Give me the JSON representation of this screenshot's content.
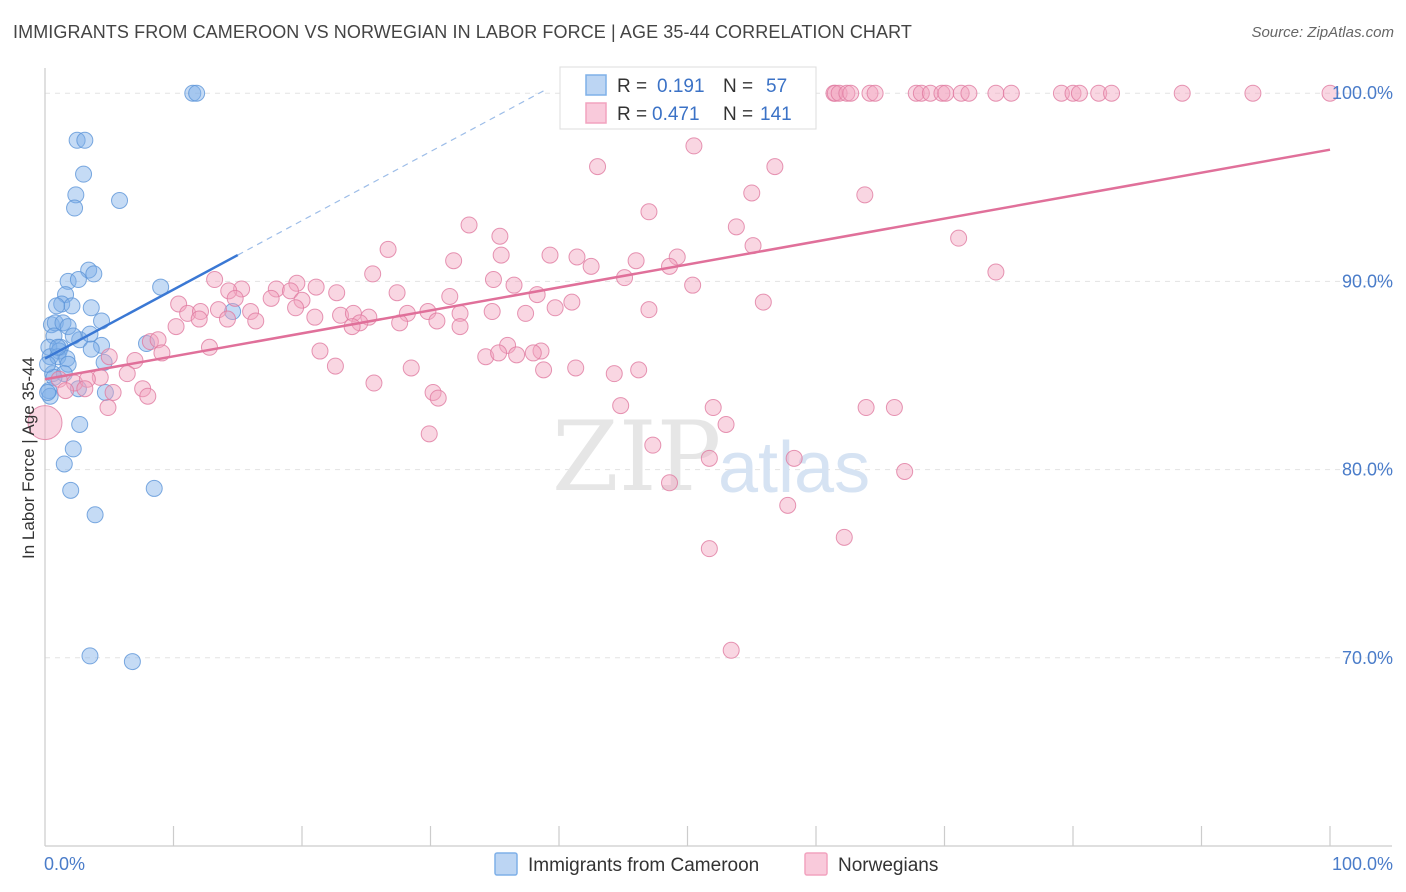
{
  "title": "IMMIGRANTS FROM CAMEROON VS NORWEGIAN IN LABOR FORCE | AGE 35-44 CORRELATION CHART",
  "source": "Source: ZipAtlas.com",
  "watermark": {
    "zip": "ZIP",
    "atlas": "atlas"
  },
  "legend": {
    "r_label": "R =",
    "n_label": "N =",
    "rows": [
      {
        "name": "Immigrants from Cameroon",
        "r": "0.191",
        "n": "57",
        "color": "#7fb0e8"
      },
      {
        "name": "Norwegians",
        "r": "0.471",
        "n": "141",
        "color": "#f2a3bf"
      }
    ]
  },
  "chart_data": {
    "type": "scatter",
    "title": "IMMIGRANTS FROM CAMEROON VS NORWEGIAN IN LABOR FORCE | AGE 35-44 CORRELATION CHART",
    "xlabel": "",
    "ylabel": "In Labor Force | Age 35-44",
    "xlim": [
      0,
      100
    ],
    "ylim": [
      60,
      101.5
    ],
    "x_tick_labels": [
      "0.0%",
      "100.0%"
    ],
    "y_ticks": [
      70,
      80,
      90,
      100
    ],
    "y_tick_labels": [
      "70.0%",
      "80.0%",
      "90.0%",
      "100.0%"
    ],
    "grid": "horizontal dashed",
    "legend_position": "top-center",
    "series": [
      {
        "name": "Immigrants from Cameroon",
        "color": "#7fb0e8",
        "stroke": "#5d95d8",
        "trend": {
          "x": [
            0,
            15
          ],
          "y": [
            85.9,
            91.4
          ],
          "extrapolated_to": [
            39,
            100
          ]
        },
        "points": [
          [
            11.5,
            100
          ],
          [
            11.8,
            100
          ],
          [
            2.5,
            97.5
          ],
          [
            3.1,
            97.5
          ],
          [
            3.0,
            95.7
          ],
          [
            2.4,
            94.6
          ],
          [
            5.8,
            94.3
          ],
          [
            2.3,
            93.9
          ],
          [
            3.4,
            90.6
          ],
          [
            3.8,
            90.4
          ],
          [
            1.8,
            90
          ],
          [
            2.6,
            90.1
          ],
          [
            9.0,
            89.7
          ],
          [
            1.6,
            89.3
          ],
          [
            1.3,
            88.8
          ],
          [
            2.1,
            88.7
          ],
          [
            3.6,
            88.6
          ],
          [
            14.6,
            88.4
          ],
          [
            0.5,
            87.7
          ],
          [
            0.8,
            87.8
          ],
          [
            1.4,
            87.8
          ],
          [
            1.8,
            87.6
          ],
          [
            4.4,
            87.9
          ],
          [
            0.7,
            87.1
          ],
          [
            2.7,
            86.9
          ],
          [
            1.2,
            86.5
          ],
          [
            3.5,
            87.2
          ],
          [
            7.9,
            86.7
          ],
          [
            4.4,
            86.6
          ],
          [
            0.3,
            86.5
          ],
          [
            1.1,
            86.3
          ],
          [
            3.6,
            86.4
          ],
          [
            0.4,
            86
          ],
          [
            1.0,
            86
          ],
          [
            1.7,
            85.9
          ],
          [
            1.8,
            85.6
          ],
          [
            4.6,
            85.7
          ],
          [
            0.6,
            85.1
          ],
          [
            1.5,
            85.1
          ],
          [
            0.7,
            84.9
          ],
          [
            0.3,
            84.2
          ],
          [
            0.4,
            83.9
          ],
          [
            2.6,
            84.3
          ],
          [
            4.7,
            84.1
          ],
          [
            2.7,
            82.4
          ],
          [
            2.2,
            81.1
          ],
          [
            1.5,
            80.3
          ],
          [
            2.0,
            78.9
          ],
          [
            8.5,
            79
          ],
          [
            3.9,
            77.6
          ],
          [
            3.5,
            70.1
          ],
          [
            6.8,
            69.8
          ],
          [
            0.2,
            84.1
          ],
          [
            0.9,
            88.7
          ],
          [
            1.0,
            86.5
          ],
          [
            2.2,
            87.1
          ],
          [
            0.2,
            85.6
          ]
        ]
      },
      {
        "name": "Norwegians",
        "color": "#f2a3bf",
        "stroke": "#e07aa0",
        "trend": {
          "x": [
            0,
            100
          ],
          "y": [
            84.8,
            97.0
          ]
        },
        "points": [
          [
            61.4,
            100
          ],
          [
            61.5,
            100
          ],
          [
            61.8,
            100
          ],
          [
            62.4,
            100
          ],
          [
            62.7,
            100
          ],
          [
            64.2,
            100
          ],
          [
            64.6,
            100
          ],
          [
            67.8,
            100
          ],
          [
            68.2,
            100
          ],
          [
            68.9,
            100
          ],
          [
            69.8,
            100
          ],
          [
            70.1,
            100
          ],
          [
            71.3,
            100
          ],
          [
            71.9,
            100
          ],
          [
            74.0,
            100
          ],
          [
            75.2,
            100
          ],
          [
            79.1,
            100
          ],
          [
            80.0,
            100
          ],
          [
            80.5,
            100
          ],
          [
            82.0,
            100
          ],
          [
            83.0,
            100
          ],
          [
            88.5,
            100
          ],
          [
            94.0,
            100
          ],
          [
            100,
            100
          ],
          [
            51.0,
            98.9
          ],
          [
            50.5,
            97.2
          ],
          [
            43.0,
            96.1
          ],
          [
            56.8,
            96.1
          ],
          [
            55.0,
            94.7
          ],
          [
            63.8,
            94.6
          ],
          [
            47.0,
            93.7
          ],
          [
            33.0,
            93
          ],
          [
            53.8,
            92.9
          ],
          [
            35.4,
            92.4
          ],
          [
            71.1,
            92.3
          ],
          [
            55.1,
            91.9
          ],
          [
            26.7,
            91.7
          ],
          [
            35.5,
            91.4
          ],
          [
            39.3,
            91.4
          ],
          [
            41.4,
            91.3
          ],
          [
            46.0,
            91.1
          ],
          [
            49.2,
            91.3
          ],
          [
            31.8,
            91.1
          ],
          [
            42.5,
            90.8
          ],
          [
            48.6,
            90.8
          ],
          [
            25.5,
            90.4
          ],
          [
            34.9,
            90.1
          ],
          [
            45.1,
            90.2
          ],
          [
            74.0,
            90.5
          ],
          [
            13.2,
            90.1
          ],
          [
            19.6,
            89.9
          ],
          [
            21.1,
            89.7
          ],
          [
            36.5,
            89.8
          ],
          [
            50.4,
            89.8
          ],
          [
            15.3,
            89.6
          ],
          [
            18.0,
            89.6
          ],
          [
            19.1,
            89.5
          ],
          [
            22.7,
            89.4
          ],
          [
            14.3,
            89.5
          ],
          [
            27.4,
            89.4
          ],
          [
            38.3,
            89.3
          ],
          [
            14.8,
            89.1
          ],
          [
            17.6,
            89.1
          ],
          [
            20.0,
            89
          ],
          [
            31.5,
            89.2
          ],
          [
            41.0,
            88.9
          ],
          [
            55.9,
            88.9
          ],
          [
            10.4,
            88.8
          ],
          [
            11.1,
            88.3
          ],
          [
            12.1,
            88.4
          ],
          [
            13.5,
            88.5
          ],
          [
            16.0,
            88.4
          ],
          [
            19.5,
            88.6
          ],
          [
            23.0,
            88.2
          ],
          [
            24.0,
            88.3
          ],
          [
            25.2,
            88.1
          ],
          [
            28.2,
            88.3
          ],
          [
            29.8,
            88.4
          ],
          [
            32.3,
            88.3
          ],
          [
            34.8,
            88.4
          ],
          [
            37.4,
            88.3
          ],
          [
            39.7,
            88.6
          ],
          [
            47.0,
            88.5
          ],
          [
            12.0,
            88
          ],
          [
            14.2,
            88
          ],
          [
            16.4,
            87.9
          ],
          [
            21.0,
            88.1
          ],
          [
            24.5,
            87.8
          ],
          [
            27.6,
            87.8
          ],
          [
            30.5,
            87.9
          ],
          [
            10.2,
            87.6
          ],
          [
            23.9,
            87.6
          ],
          [
            32.3,
            87.6
          ],
          [
            8.2,
            86.8
          ],
          [
            8.8,
            86.9
          ],
          [
            36.0,
            86.6
          ],
          [
            12.8,
            86.5
          ],
          [
            21.4,
            86.3
          ],
          [
            38.6,
            86.3
          ],
          [
            9.1,
            86.2
          ],
          [
            5.0,
            86
          ],
          [
            34.3,
            86
          ],
          [
            35.3,
            86.2
          ],
          [
            36.7,
            86.1
          ],
          [
            38.0,
            86.2
          ],
          [
            7.0,
            85.8
          ],
          [
            22.6,
            85.5
          ],
          [
            28.5,
            85.4
          ],
          [
            38.8,
            85.3
          ],
          [
            41.3,
            85.4
          ],
          [
            46.2,
            85.3
          ],
          [
            44.3,
            85.1
          ],
          [
            6.4,
            85.1
          ],
          [
            4.3,
            84.9
          ],
          [
            1.1,
            84.8
          ],
          [
            2.3,
            84.6
          ],
          [
            3.3,
            84.8
          ],
          [
            7.6,
            84.3
          ],
          [
            25.6,
            84.6
          ],
          [
            3.1,
            84.3
          ],
          [
            5.3,
            84.1
          ],
          [
            1.6,
            84.2
          ],
          [
            8.0,
            83.9
          ],
          [
            30.2,
            84.1
          ],
          [
            30.6,
            83.8
          ],
          [
            4.9,
            83.3
          ],
          [
            44.8,
            83.4
          ],
          [
            52.0,
            83.3
          ],
          [
            63.9,
            83.3
          ],
          [
            66.1,
            83.3
          ],
          [
            53.0,
            82.4
          ],
          [
            29.9,
            81.9
          ],
          [
            47.3,
            81.3
          ],
          [
            51.7,
            80.6
          ],
          [
            58.3,
            80.6
          ],
          [
            66.9,
            79.9
          ],
          [
            48.6,
            79.3
          ],
          [
            57.8,
            78.1
          ],
          [
            51.7,
            75.8
          ],
          [
            62.2,
            76.4
          ],
          [
            53.4,
            70.4
          ],
          [
            0.0,
            82.5
          ]
        ]
      }
    ]
  }
}
